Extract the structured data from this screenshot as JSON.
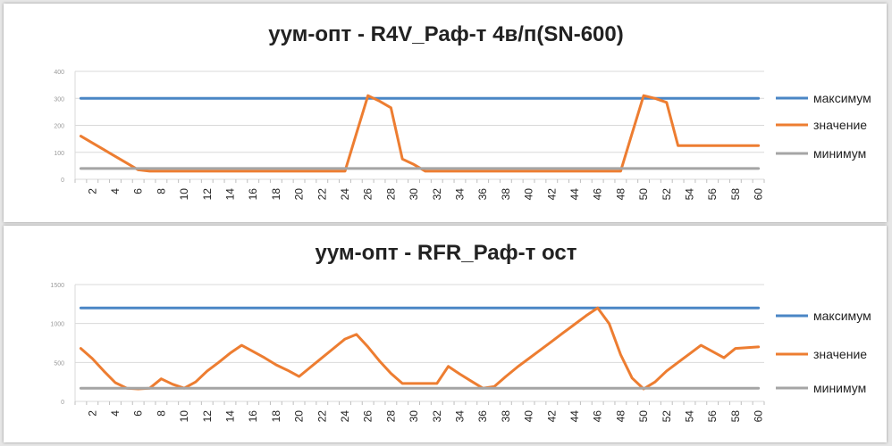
{
  "chart_data": [
    {
      "type": "line",
      "title": "уум-опт - R4V_Раф-т 4в/п(SN-600)",
      "ylim": [
        0,
        400
      ],
      "yticks": [
        "0",
        "100",
        "200",
        "300",
        "400"
      ],
      "x": [
        1,
        2,
        3,
        4,
        5,
        6,
        7,
        8,
        9,
        10,
        11,
        12,
        13,
        14,
        15,
        16,
        17,
        18,
        19,
        20,
        21,
        22,
        23,
        24,
        25,
        26,
        27,
        28,
        29,
        30,
        31,
        32,
        33,
        34,
        35,
        36,
        37,
        38,
        39,
        40,
        41,
        42,
        43,
        44,
        45,
        46,
        47,
        48,
        49,
        50,
        51,
        52,
        53,
        54,
        55,
        56,
        57,
        58,
        59,
        60
      ],
      "xticks": [
        "2",
        "4",
        "6",
        "8",
        "10",
        "12",
        "14",
        "16",
        "18",
        "20",
        "22",
        "24",
        "26",
        "28",
        "30",
        "32",
        "34",
        "36",
        "38",
        "40",
        "42",
        "44",
        "46",
        "48",
        "50",
        "52",
        "54",
        "56",
        "58",
        "60"
      ],
      "legend": "right",
      "grid": true,
      "series": [
        {
          "name": "максимум",
          "color": "#4a86c5",
          "values": [
            300,
            300,
            300,
            300,
            300,
            300,
            300,
            300,
            300,
            300,
            300,
            300,
            300,
            300,
            300,
            300,
            300,
            300,
            300,
            300,
            300,
            300,
            300,
            300,
            300,
            300,
            300,
            300,
            300,
            300,
            300,
            300,
            300,
            300,
            300,
            300,
            300,
            300,
            300,
            300,
            300,
            300,
            300,
            300,
            300,
            300,
            300,
            300,
            300,
            300,
            300,
            300,
            300,
            300,
            300,
            300,
            300,
            300,
            300,
            300
          ]
        },
        {
          "name": "значение",
          "color": "#ed7d31",
          "values": [
            160,
            135,
            110,
            85,
            60,
            35,
            30,
            30,
            30,
            30,
            30,
            30,
            30,
            30,
            30,
            30,
            30,
            30,
            30,
            30,
            30,
            30,
            30,
            30,
            170,
            310,
            290,
            265,
            75,
            55,
            30,
            30,
            30,
            30,
            30,
            30,
            30,
            30,
            30,
            30,
            30,
            30,
            30,
            30,
            30,
            30,
            30,
            30,
            170,
            310,
            300,
            285,
            125,
            125,
            125,
            125,
            125,
            125,
            125,
            125
          ]
        },
        {
          "name": "минимум",
          "color": "#a5a5a5",
          "values": [
            40,
            40,
            40,
            40,
            40,
            40,
            40,
            40,
            40,
            40,
            40,
            40,
            40,
            40,
            40,
            40,
            40,
            40,
            40,
            40,
            40,
            40,
            40,
            40,
            40,
            40,
            40,
            40,
            40,
            40,
            40,
            40,
            40,
            40,
            40,
            40,
            40,
            40,
            40,
            40,
            40,
            40,
            40,
            40,
            40,
            40,
            40,
            40,
            40,
            40,
            40,
            40,
            40,
            40,
            40,
            40,
            40,
            40,
            40,
            40
          ]
        }
      ]
    },
    {
      "type": "line",
      "title": "уум-опт - RFR_Раф-т ост",
      "ylim": [
        0,
        1500
      ],
      "yticks": [
        "0",
        "500",
        "1000",
        "1500"
      ],
      "x": [
        1,
        2,
        3,
        4,
        5,
        6,
        7,
        8,
        9,
        10,
        11,
        12,
        13,
        14,
        15,
        16,
        17,
        18,
        19,
        20,
        21,
        22,
        23,
        24,
        25,
        26,
        27,
        28,
        29,
        30,
        31,
        32,
        33,
        34,
        35,
        36,
        37,
        38,
        39,
        40,
        41,
        42,
        43,
        44,
        45,
        46,
        47,
        48,
        49,
        50,
        51,
        52,
        53,
        54,
        55,
        56,
        57,
        58,
        59,
        60
      ],
      "xticks": [
        "2",
        "4",
        "6",
        "8",
        "10",
        "12",
        "14",
        "16",
        "18",
        "20",
        "22",
        "24",
        "26",
        "28",
        "30",
        "32",
        "34",
        "36",
        "38",
        "40",
        "42",
        "44",
        "46",
        "48",
        "50",
        "52",
        "54",
        "56",
        "58",
        "60"
      ],
      "legend": "right",
      "grid": true,
      "series": [
        {
          "name": "максимум",
          "color": "#4a86c5",
          "values": [
            1200,
            1200,
            1200,
            1200,
            1200,
            1200,
            1200,
            1200,
            1200,
            1200,
            1200,
            1200,
            1200,
            1200,
            1200,
            1200,
            1200,
            1200,
            1200,
            1200,
            1200,
            1200,
            1200,
            1200,
            1200,
            1200,
            1200,
            1200,
            1200,
            1200,
            1200,
            1200,
            1200,
            1200,
            1200,
            1200,
            1200,
            1200,
            1200,
            1200,
            1200,
            1200,
            1200,
            1200,
            1200,
            1200,
            1200,
            1200,
            1200,
            1200,
            1200,
            1200,
            1200,
            1200,
            1200,
            1200,
            1200,
            1200,
            1200,
            1200
          ]
        },
        {
          "name": "значение",
          "color": "#ed7d31",
          "values": [
            680,
            550,
            390,
            240,
            170,
            160,
            170,
            290,
            220,
            170,
            250,
            390,
            500,
            620,
            720,
            640,
            560,
            470,
            400,
            320,
            440,
            560,
            680,
            800,
            860,
            700,
            520,
            360,
            230,
            230,
            230,
            230,
            450,
            350,
            260,
            170,
            190,
            320,
            440,
            550,
            660,
            770,
            880,
            990,
            1100,
            1200,
            1000,
            600,
            300,
            160,
            250,
            390,
            500,
            610,
            720,
            640,
            560,
            680,
            690,
            700
          ]
        },
        {
          "name": "минимум",
          "color": "#a5a5a5",
          "values": [
            170,
            170,
            170,
            170,
            170,
            170,
            170,
            170,
            170,
            170,
            170,
            170,
            170,
            170,
            170,
            170,
            170,
            170,
            170,
            170,
            170,
            170,
            170,
            170,
            170,
            170,
            170,
            170,
            170,
            170,
            170,
            170,
            170,
            170,
            170,
            170,
            170,
            170,
            170,
            170,
            170,
            170,
            170,
            170,
            170,
            170,
            170,
            170,
            170,
            170,
            170,
            170,
            170,
            170,
            170,
            170,
            170,
            170,
            170,
            170
          ]
        }
      ]
    }
  ]
}
